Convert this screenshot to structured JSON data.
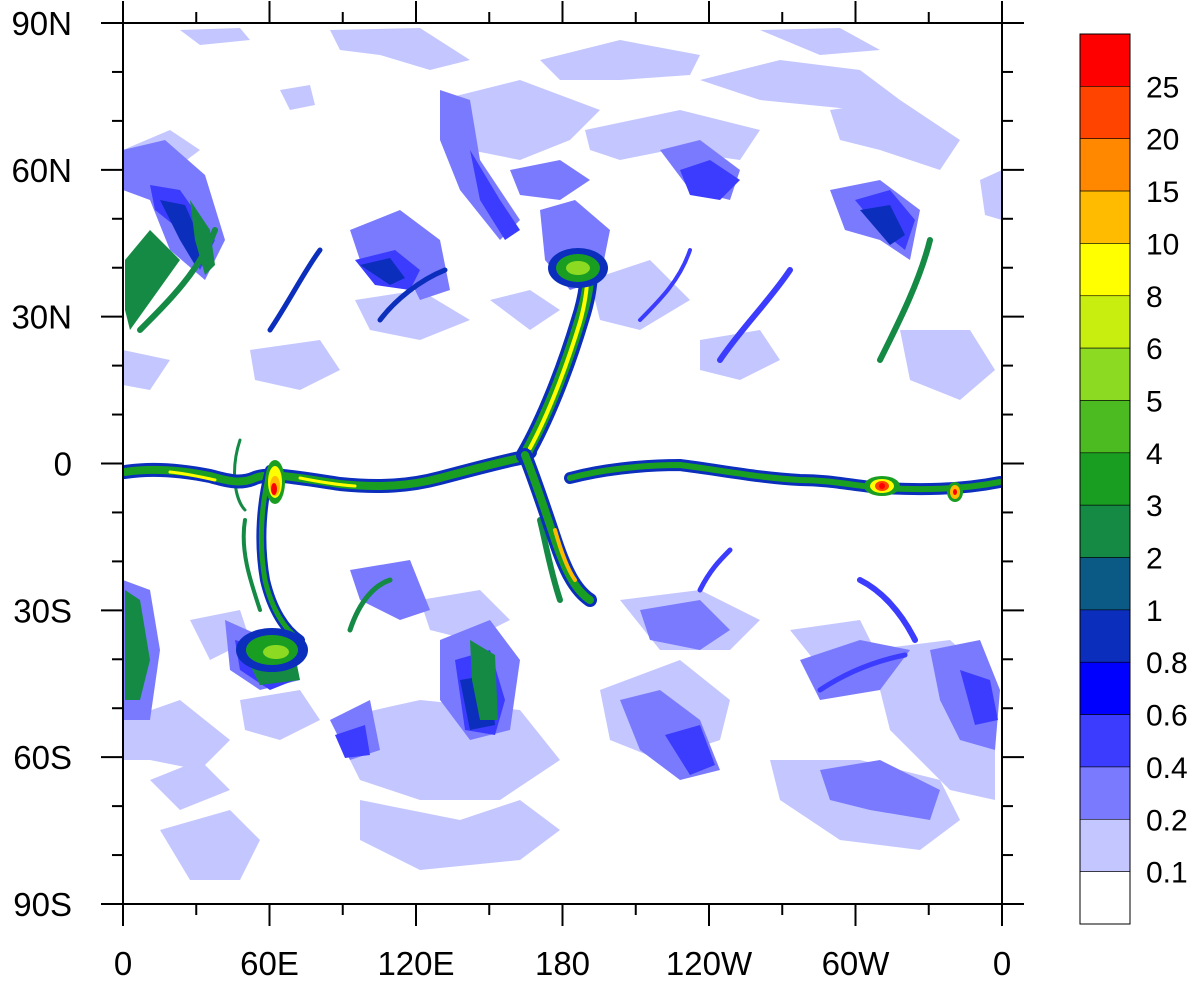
{
  "map": {
    "lat_labels": [
      "90N",
      "60N",
      "30N",
      "0",
      "30S",
      "60S",
      "90S"
    ],
    "lon_labels": [
      "0",
      "60E",
      "120E",
      "180",
      "120W",
      "60W",
      "0"
    ]
  },
  "colorbar": {
    "levels": [
      "25",
      "20",
      "15",
      "10",
      "8",
      "6",
      "5",
      "4",
      "3",
      "2",
      "1",
      "0.8",
      "0.6",
      "0.4",
      "0.2",
      "0.1"
    ],
    "colors": [
      "#ff0000",
      "#ff4400",
      "#ff8800",
      "#ffbb00",
      "#ffff00",
      "#c8ee10",
      "#8cdb22",
      "#4cbb22",
      "#1a9e22",
      "#148a44",
      "#0b5a86",
      "#0b2ebd",
      "#0000ff",
      "#3c3cff",
      "#7a7aff",
      "#c4c6ff",
      "#ffffff"
    ]
  }
}
